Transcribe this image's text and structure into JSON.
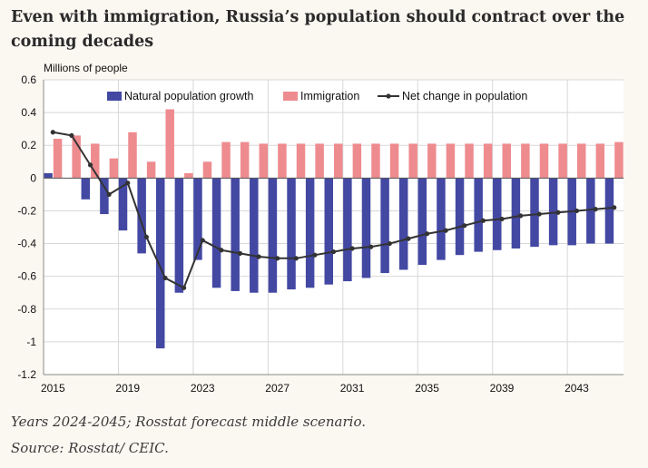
{
  "header": {
    "title": "Even with immigration, Russia’s population should contract over the coming decades"
  },
  "footer": {
    "note": "Years 2024-2045; Rosstat forecast middle scenario.",
    "source": "Source: Rosstat/ CEIC."
  },
  "colors": {
    "natural": "#4348a3",
    "immigration": "#ee8b8f",
    "net": "#333333",
    "grid": "#d8d8d8",
    "axis": "#8a8a8a"
  },
  "chart_data": {
    "type": "bar",
    "unit_label": "Millions of people",
    "x": [
      2015,
      2016,
      2017,
      2018,
      2019,
      2020,
      2021,
      2022,
      2023,
      2024,
      2025,
      2026,
      2027,
      2028,
      2029,
      2030,
      2031,
      2032,
      2033,
      2034,
      2035,
      2036,
      2037,
      2038,
      2039,
      2040,
      2041,
      2042,
      2043,
      2044,
      2045
    ],
    "xticks": [
      "2015",
      "2019",
      "2023",
      "2027",
      "2031",
      "2035",
      "2039",
      "2043"
    ],
    "ylim": [
      -1.2,
      0.6
    ],
    "yticks": [
      "0.6",
      "0.4",
      "0.2",
      "0",
      "-0.2",
      "-0.4",
      "-0.6",
      "-0.8",
      "-1",
      "-1.2"
    ],
    "legend": [
      "Natural population growth",
      "Immigration",
      "Net change in population"
    ],
    "series": [
      {
        "name": "Natural population growth",
        "type": "bar",
        "values": [
          0.03,
          0.0,
          -0.13,
          -0.22,
          -0.32,
          -0.46,
          -1.04,
          -0.7,
          -0.5,
          -0.67,
          -0.69,
          -0.7,
          -0.7,
          -0.68,
          -0.67,
          -0.65,
          -0.63,
          -0.61,
          -0.58,
          -0.56,
          -0.53,
          -0.5,
          -0.47,
          -0.45,
          -0.44,
          -0.43,
          -0.42,
          -0.41,
          -0.41,
          -0.4,
          -0.4
        ]
      },
      {
        "name": "Immigration",
        "type": "bar",
        "values": [
          0.24,
          0.26,
          0.21,
          0.12,
          0.28,
          0.1,
          0.42,
          0.03,
          0.1,
          0.22,
          0.22,
          0.21,
          0.21,
          0.21,
          0.21,
          0.21,
          0.21,
          0.21,
          0.21,
          0.21,
          0.21,
          0.21,
          0.21,
          0.21,
          0.21,
          0.21,
          0.21,
          0.21,
          0.21,
          0.21,
          0.22
        ]
      },
      {
        "name": "Net change in population",
        "type": "line",
        "values": [
          0.28,
          0.26,
          0.08,
          -0.1,
          -0.03,
          -0.36,
          -0.61,
          -0.67,
          -0.38,
          -0.44,
          -0.46,
          -0.48,
          -0.49,
          -0.49,
          -0.47,
          -0.45,
          -0.43,
          -0.42,
          -0.4,
          -0.37,
          -0.34,
          -0.32,
          -0.29,
          -0.26,
          -0.25,
          -0.23,
          -0.22,
          -0.21,
          -0.2,
          -0.19,
          -0.18
        ]
      }
    ]
  }
}
